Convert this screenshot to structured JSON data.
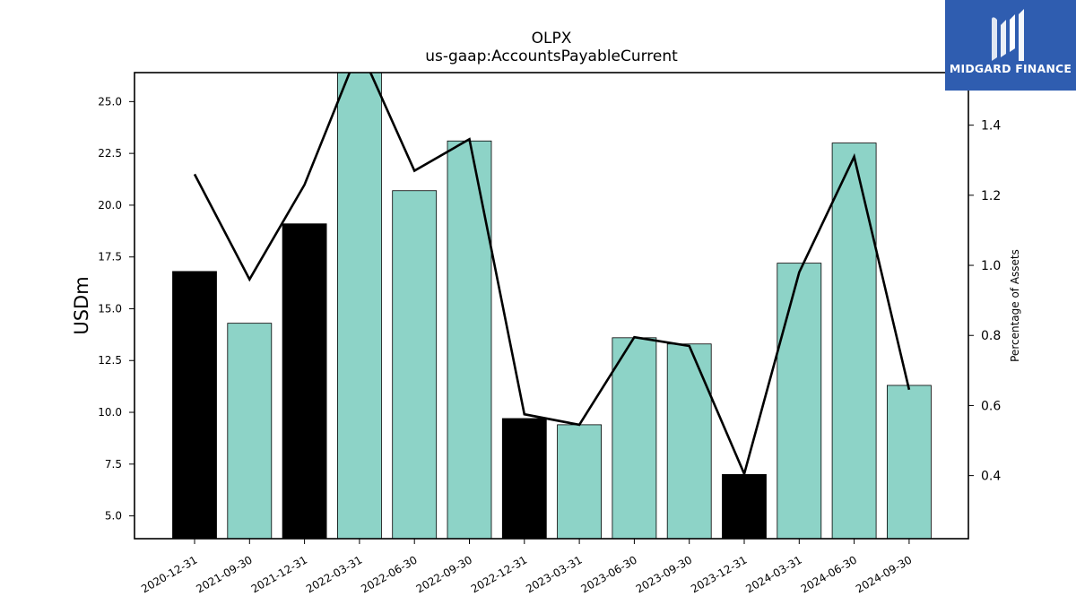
{
  "chart_data": {
    "type": "bar",
    "title": "OLPX",
    "subtitle": "us-gaap:AccountsPayableCurrent",
    "ylabel": "USDm",
    "y2label": "Percentage of Assets",
    "ylim": [
      3.9,
      26.4
    ],
    "y2lim": [
      0.22,
      1.55
    ],
    "yticks": [
      5.0,
      7.5,
      10.0,
      12.5,
      15.0,
      17.5,
      20.0,
      22.5,
      25.0
    ],
    "y2ticks": [
      0.4,
      0.6,
      0.8,
      1.0,
      1.2,
      1.4
    ],
    "categories": [
      "2020-12-31",
      "2021-09-30",
      "2021-12-31",
      "2022-03-31",
      "2022-06-30",
      "2022-09-30",
      "2022-12-31",
      "2023-03-31",
      "2023-06-30",
      "2023-09-30",
      "2023-12-31",
      "2024-03-31",
      "2024-06-30",
      "2024-09-30"
    ],
    "series": [
      {
        "values": [
          16.8,
          14.3,
          19.1,
          26.4,
          20.7,
          23.1,
          9.7,
          9.4,
          13.6,
          13.3,
          7.0,
          17.2,
          23.0,
          11.3
        ],
        "colors": [
          "#000000",
          "#8dd3c7",
          "#000000",
          "#8dd3c7",
          "#8dd3c7",
          "#8dd3c7",
          "#000000",
          "#8dd3c7",
          "#8dd3c7",
          "#8dd3c7",
          "#000000",
          "#8dd3c7",
          "#8dd3c7",
          "#8dd3c7"
        ]
      },
      {
        "axis": "right",
        "type": "line",
        "values": [
          1.26,
          0.96,
          1.23,
          1.62,
          1.27,
          1.36,
          0.575,
          0.545,
          0.795,
          0.77,
          0.405,
          0.98,
          1.31,
          0.645
        ]
      }
    ],
    "grid": false
  },
  "logo": {
    "text": "MIDGARD FINANCE",
    "background": "#2f5db0"
  }
}
